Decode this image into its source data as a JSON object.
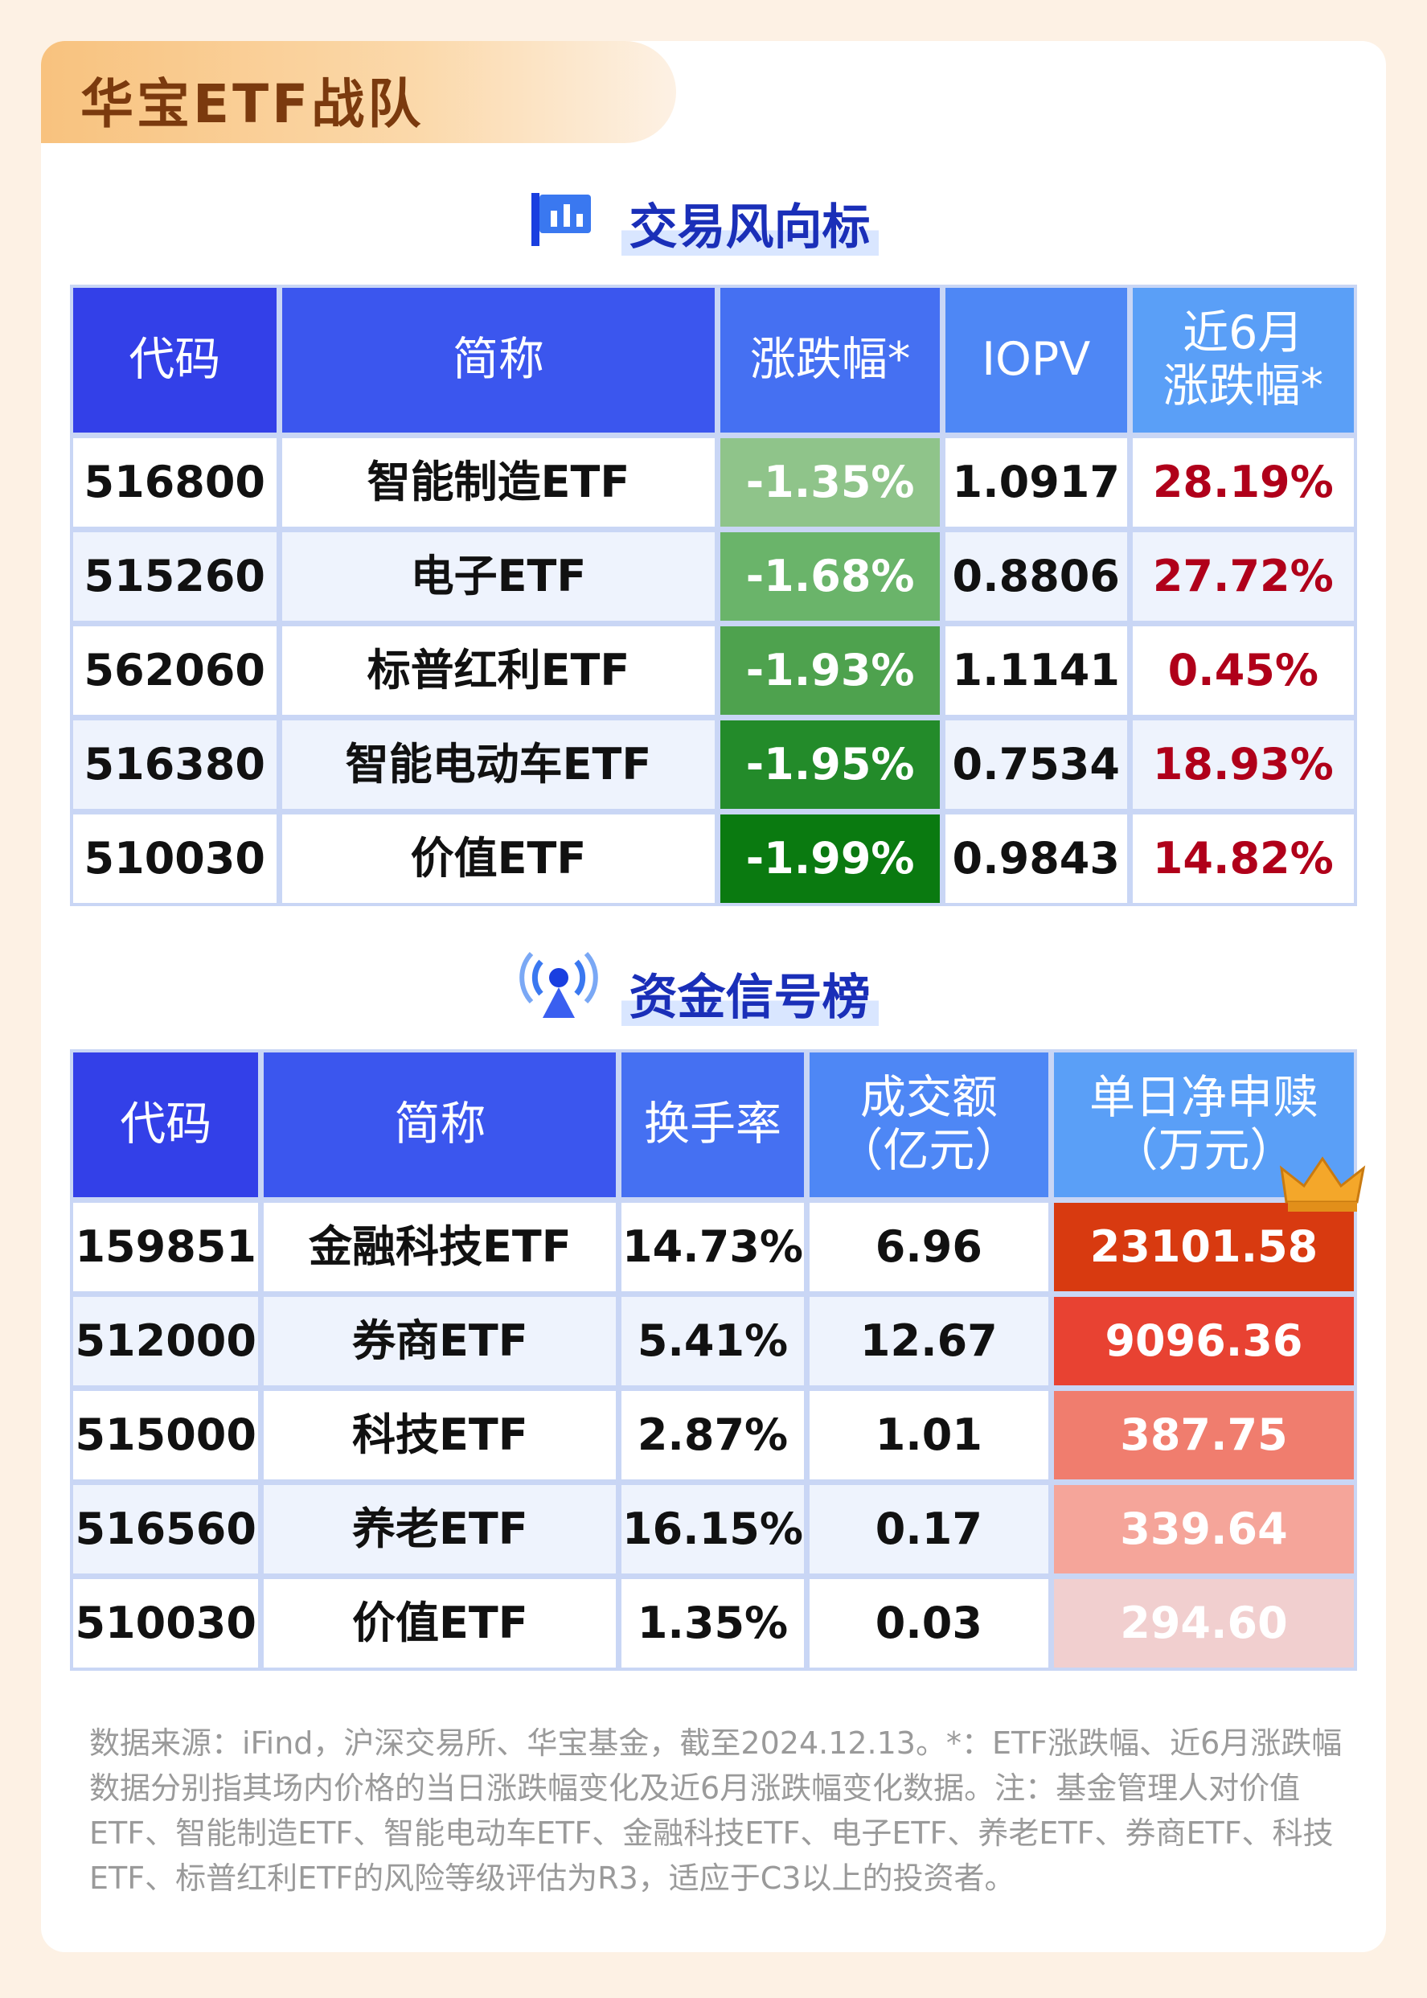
{
  "header": {
    "title": "华宝ETF战队"
  },
  "sections": [
    {
      "title": "交易风向标",
      "highlight_colors": [
        "#8fc48a",
        "#6ab46a",
        "#4ea24e",
        "#238b2a",
        "#0a7a10"
      ],
      "table": {
        "columns": [
          "代码",
          "简称",
          "涨跌幅*",
          "IOPV",
          "近6月\n涨跌幅*"
        ],
        "rows": [
          [
            "516800",
            "智能制造ETF",
            "-1.35%",
            "1.0917",
            "28.19%"
          ],
          [
            "515260",
            "电子ETF",
            "-1.68%",
            "0.8806",
            "27.72%"
          ],
          [
            "562060",
            "标普红利ETF",
            "-1.93%",
            "1.1141",
            "0.45%"
          ],
          [
            "516380",
            "智能电动车ETF",
            "-1.95%",
            "0.7534",
            "18.93%"
          ],
          [
            "510030",
            "价值ETF",
            "-1.99%",
            "0.9843",
            "14.82%"
          ]
        ]
      }
    },
    {
      "title": "资金信号榜",
      "highlight_colors": [
        "#d83a10",
        "#e84232",
        "#f07d6e",
        "#f5a59a",
        "#f1cfcf"
      ],
      "table": {
        "columns": [
          "代码",
          "简称",
          "换手率",
          "成交额\n（亿元）",
          "单日净申赎\n（万元）"
        ],
        "rows": [
          [
            "159851",
            "金融科技ETF",
            "14.73%",
            "6.96",
            "23101.58"
          ],
          [
            "512000",
            "券商ETF",
            "5.41%",
            "12.67",
            "9096.36"
          ],
          [
            "515000",
            "科技ETF",
            "2.87%",
            "1.01",
            "387.75"
          ],
          [
            "516560",
            "养老ETF",
            "16.15%",
            "0.17",
            "339.64"
          ],
          [
            "510030",
            "价值ETF",
            "1.35%",
            "0.03",
            "294.60"
          ]
        ]
      }
    }
  ],
  "footnote": "数据来源：iFind，沪深交易所、华宝基金，截至2024.12.13。*：ETF涨跌幅、近6月涨跌幅数据分别指其场内价格的当日涨跌幅变化及近6月涨跌幅变化数据。注：基金管理人对价值ETF、智能制造ETF、智能电动车ETF、金融科技ETF、电子ETF、养老ETF、券商ETF、科技ETF、标普红利ETF的风险等级评估为R3，适应于C3以上的投资者。"
}
